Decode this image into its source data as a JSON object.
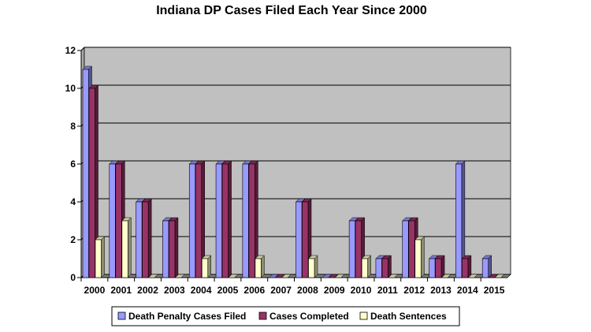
{
  "chart_data": {
    "type": "bar",
    "title": "Indiana DP Cases Filed Each Year Since 2000",
    "xlabel": "",
    "ylabel": "",
    "categories": [
      "2000",
      "2001",
      "2002",
      "2003",
      "2004",
      "2005",
      "2006",
      "2007",
      "2008",
      "2009",
      "2010",
      "2011",
      "2012",
      "2013",
      "2014",
      "2015"
    ],
    "series": [
      {
        "name": "Death Penalty Cases Filed",
        "color": "#9a99ff",
        "values": [
          11,
          6,
          4,
          3,
          6,
          6,
          6,
          0,
          4,
          0,
          3,
          1,
          3,
          1,
          6,
          1
        ]
      },
      {
        "name": "Cases Completed",
        "color": "#993366",
        "values": [
          10,
          6,
          4,
          3,
          6,
          6,
          6,
          0,
          4,
          0,
          3,
          1,
          3,
          1,
          1,
          0
        ]
      },
      {
        "name": "Death Sentences",
        "color": "#ffffcc",
        "values": [
          2,
          3,
          0,
          0,
          1,
          0,
          1,
          0,
          1,
          0,
          1,
          0,
          2,
          0,
          0,
          0
        ]
      }
    ],
    "ylim": [
      0,
      12
    ],
    "yticks": [
      0,
      2,
      4,
      6,
      8,
      10,
      12
    ],
    "grid": true,
    "legend_position": "bottom",
    "plot_background": "#c0c0c0"
  }
}
